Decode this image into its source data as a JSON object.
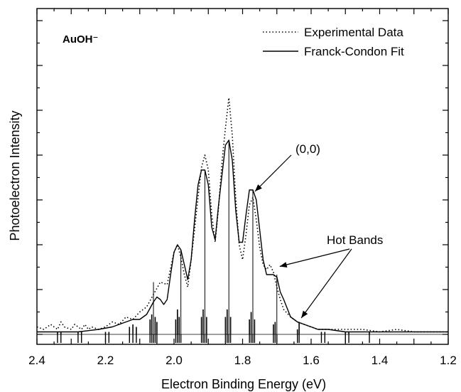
{
  "chart_data": {
    "type": "line",
    "title": "AuOH⁻",
    "xlabel": "Electron Binding Energy (eV)",
    "ylabel": "Photoelectron Intensity",
    "xlim": [
      2.4,
      1.2
    ],
    "x_reversed": true,
    "ylim": [
      0,
      1.0
    ],
    "x_ticks": [
      "2.4",
      "2.2",
      "2.0",
      "1.8",
      "1.6",
      "1.4",
      "1.2"
    ],
    "x_tick_values": [
      2.4,
      2.2,
      2.0,
      1.8,
      1.6,
      1.4,
      1.2
    ],
    "grid": false,
    "legend": {
      "placement": "top-right",
      "entries": [
        {
          "label": "Experimental Data",
          "style": "dotted"
        },
        {
          "label": "Franck-Condon Fit",
          "style": "solid"
        }
      ]
    },
    "series": [
      {
        "name": "Experimental Data",
        "style": "dotted",
        "x": [
          2.4,
          2.38,
          2.36,
          2.34,
          2.33,
          2.32,
          2.3,
          2.29,
          2.28,
          2.27,
          2.26,
          2.25,
          2.24,
          2.22,
          2.2,
          2.18,
          2.16,
          2.14,
          2.12,
          2.1,
          2.08,
          2.06,
          2.04,
          2.02,
          2.0,
          1.99,
          1.98,
          1.97,
          1.96,
          1.95,
          1.94,
          1.93,
          1.92,
          1.91,
          1.9,
          1.89,
          1.88,
          1.87,
          1.86,
          1.85,
          1.84,
          1.83,
          1.82,
          1.81,
          1.8,
          1.79,
          1.78,
          1.77,
          1.76,
          1.75,
          1.74,
          1.73,
          1.72,
          1.71,
          1.7,
          1.69,
          1.68,
          1.66,
          1.64,
          1.62,
          1.6,
          1.58,
          1.56,
          1.54,
          1.52,
          1.5,
          1.45,
          1.4,
          1.35,
          1.3,
          1.25,
          1.2
        ],
        "y": [
          0.03,
          0.02,
          0.04,
          0.02,
          0.05,
          0.03,
          0.02,
          0.04,
          0.03,
          0.02,
          0.04,
          0.02,
          0.03,
          0.02,
          0.03,
          0.05,
          0.04,
          0.07,
          0.06,
          0.09,
          0.11,
          0.16,
          0.21,
          0.2,
          0.33,
          0.36,
          0.31,
          0.24,
          0.19,
          0.3,
          0.42,
          0.55,
          0.67,
          0.72,
          0.66,
          0.48,
          0.37,
          0.51,
          0.69,
          0.83,
          0.95,
          0.8,
          0.55,
          0.36,
          0.3,
          0.4,
          0.52,
          0.55,
          0.46,
          0.35,
          0.28,
          0.26,
          0.28,
          0.25,
          0.19,
          0.14,
          0.1,
          0.07,
          0.05,
          0.04,
          0.03,
          0.02,
          0.02,
          0.02,
          0.02,
          0.02,
          0.02,
          0.01,
          0.02,
          0.01,
          0.01,
          0.01
        ]
      },
      {
        "name": "Franck-Condon Fit",
        "style": "solid",
        "x": [
          2.4,
          2.34,
          2.28,
          2.22,
          2.18,
          2.14,
          2.12,
          2.1,
          2.08,
          2.06,
          2.05,
          2.04,
          2.03,
          2.02,
          2.01,
          2.0,
          1.99,
          1.98,
          1.97,
          1.96,
          1.95,
          1.94,
          1.93,
          1.92,
          1.91,
          1.9,
          1.89,
          1.88,
          1.87,
          1.86,
          1.85,
          1.84,
          1.83,
          1.82,
          1.81,
          1.8,
          1.79,
          1.78,
          1.77,
          1.76,
          1.75,
          1.74,
          1.73,
          1.72,
          1.71,
          1.7,
          1.69,
          1.68,
          1.66,
          1.64,
          1.62,
          1.6,
          1.58,
          1.55,
          1.5,
          1.45,
          1.4,
          1.35,
          1.3,
          1.25,
          1.2
        ],
        "y": [
          0.01,
          0.01,
          0.01,
          0.02,
          0.03,
          0.05,
          0.06,
          0.06,
          0.08,
          0.13,
          0.15,
          0.14,
          0.12,
          0.14,
          0.24,
          0.33,
          0.36,
          0.34,
          0.28,
          0.22,
          0.3,
          0.46,
          0.6,
          0.66,
          0.66,
          0.6,
          0.43,
          0.38,
          0.52,
          0.64,
          0.76,
          0.78,
          0.7,
          0.5,
          0.37,
          0.37,
          0.48,
          0.58,
          0.58,
          0.54,
          0.42,
          0.3,
          0.24,
          0.24,
          0.24,
          0.23,
          0.17,
          0.14,
          0.07,
          0.05,
          0.04,
          0.03,
          0.02,
          0.02,
          0.01,
          0.01,
          0.01,
          0.01,
          0.01,
          0.01,
          0.01
        ]
      }
    ],
    "stick_spectrum": {
      "x": [
        2.34,
        2.33,
        2.28,
        2.27,
        2.2,
        2.19,
        2.13,
        2.12,
        2.11,
        2.07,
        2.065,
        2.06,
        2.055,
        2.05,
        1.995,
        1.99,
        1.985,
        1.98,
        1.92,
        1.915,
        1.91,
        1.905,
        1.85,
        1.845,
        1.84,
        1.835,
        1.78,
        1.775,
        1.77,
        1.765,
        1.71,
        1.705,
        1.7,
        1.64,
        1.635,
        1.57,
        1.56,
        1.5,
        1.49,
        1.43
      ],
      "y": [
        0.01,
        0.01,
        0.01,
        0.01,
        0.01,
        0.01,
        0.03,
        0.04,
        0.03,
        0.06,
        0.08,
        0.21,
        0.07,
        0.05,
        0.06,
        0.1,
        0.07,
        0.34,
        0.07,
        0.1,
        0.66,
        0.07,
        0.07,
        0.1,
        0.78,
        0.07,
        0.06,
        0.09,
        0.58,
        0.06,
        0.04,
        0.05,
        0.24,
        0.02,
        0.05,
        0.01,
        0.01,
        0.01,
        0.01,
        0.01
      ]
    },
    "annotations": [
      {
        "text": "(0,0)",
        "points_to": [
          1.77,
          0.58
        ]
      },
      {
        "text": "Hot Bands",
        "points_to": [
          [
            1.7,
            0.25
          ],
          [
            1.635,
            0.06
          ]
        ]
      }
    ]
  }
}
